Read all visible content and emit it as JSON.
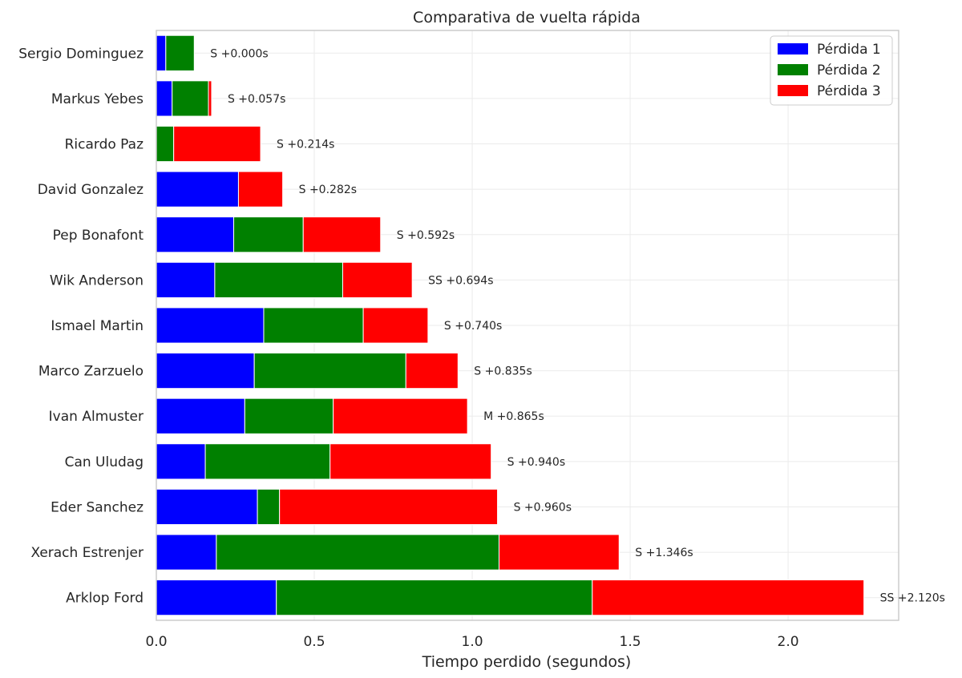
{
  "chart_data": {
    "type": "bar",
    "orientation": "horizontal",
    "stacked": true,
    "title": "Comparativa de vuelta rápida",
    "xlabel": "Tiempo perdido (segundos)",
    "ylabel": "",
    "xlim": [
      0,
      2.35
    ],
    "xticks": [
      "0.0",
      "0.5",
      "1.0",
      "1.5",
      "2.0"
    ],
    "grid": true,
    "legend_position": "top-right",
    "categories": [
      "Sergio Dominguez",
      "Markus Yebes",
      "Ricardo Paz",
      "David Gonzalez",
      "Pep Bonafont",
      "Wik Anderson",
      "Ismael Martin",
      "Marco Zarzuelo",
      "Ivan Almuster",
      "Can Uludag",
      "Eder Sanchez",
      "Xerach Estrenjer",
      "Arklop Ford"
    ],
    "series": [
      {
        "name": "Pérdida 1",
        "color": "#0000ff",
        "values": [
          0.03,
          0.05,
          0.0,
          0.26,
          0.245,
          0.185,
          0.34,
          0.31,
          0.28,
          0.155,
          0.32,
          0.19,
          0.38
        ]
      },
      {
        "name": "Pérdida 2",
        "color": "#008000",
        "values": [
          0.09,
          0.115,
          0.055,
          0.0,
          0.22,
          0.405,
          0.315,
          0.48,
          0.28,
          0.395,
          0.07,
          0.895,
          1.0
        ]
      },
      {
        "name": "Pérdida 3",
        "color": "#ff0000",
        "values": [
          0.0,
          0.01,
          0.275,
          0.14,
          0.245,
          0.22,
          0.205,
          0.165,
          0.425,
          0.51,
          0.69,
          0.38,
          0.86
        ]
      }
    ],
    "bar_labels": [
      "S  +0.000s",
      "S  +0.057s",
      "S  +0.214s",
      "S  +0.282s",
      "S  +0.592s",
      "SS  +0.694s",
      "S  +0.740s",
      "S  +0.835s",
      "M  +0.865s",
      "S  +0.940s",
      "S  +0.960s",
      "S  +1.346s",
      "SS  +2.120s"
    ]
  }
}
